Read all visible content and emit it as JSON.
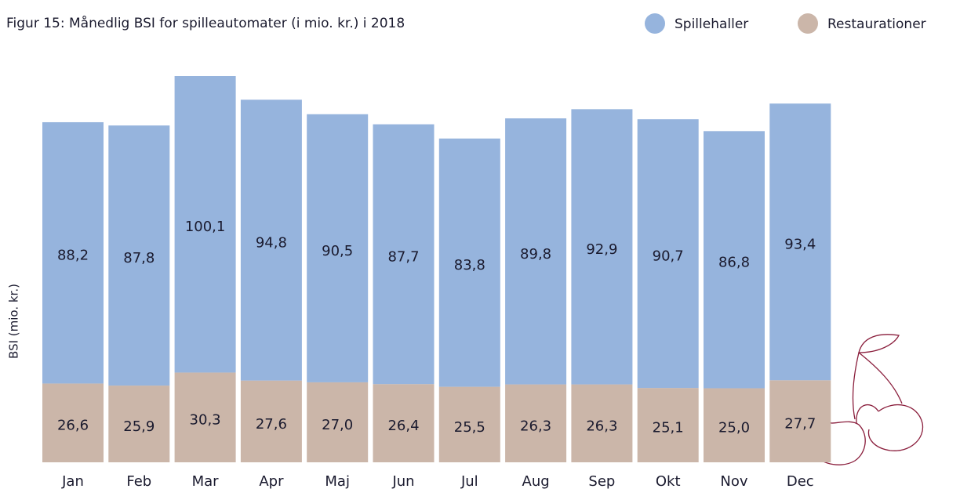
{
  "chart_data": {
    "type": "stacked_bar",
    "title": "Figur 15: Månedlig BSI for spilleautomater (i mio. kr.) i 2018",
    "y_label": "BSI (mio. kr.)",
    "categories": [
      "Jan",
      "Feb",
      "Mar",
      "Apr",
      "Maj",
      "Jun",
      "Jul",
      "Aug",
      "Sep",
      "Okt",
      "Nov",
      "Dec"
    ],
    "series": [
      {
        "name": "Restaurationer",
        "color": "#cbb6a9",
        "values": [
          26.6,
          25.9,
          30.3,
          27.6,
          27.0,
          26.4,
          25.5,
          26.3,
          26.3,
          25.1,
          25.0,
          27.7
        ],
        "value_labels": [
          "26,6",
          "25,9",
          "30,3",
          "27,6",
          "27,0",
          "26,4",
          "25,5",
          "26,3",
          "26,3",
          "25,1",
          "25,0",
          "27,7"
        ]
      },
      {
        "name": "Spillehaller",
        "color": "#96b4dd",
        "values": [
          88.2,
          87.8,
          100.1,
          94.8,
          90.5,
          87.7,
          83.8,
          89.8,
          92.9,
          90.7,
          86.8,
          93.4
        ],
        "value_labels": [
          "88,2",
          "87,8",
          "100,1",
          "94,8",
          "90,5",
          "87,7",
          "83,8",
          "89,8",
          "92,9",
          "90,7",
          "86,8",
          "93,4"
        ]
      }
    ],
    "legend": "top-right"
  }
}
